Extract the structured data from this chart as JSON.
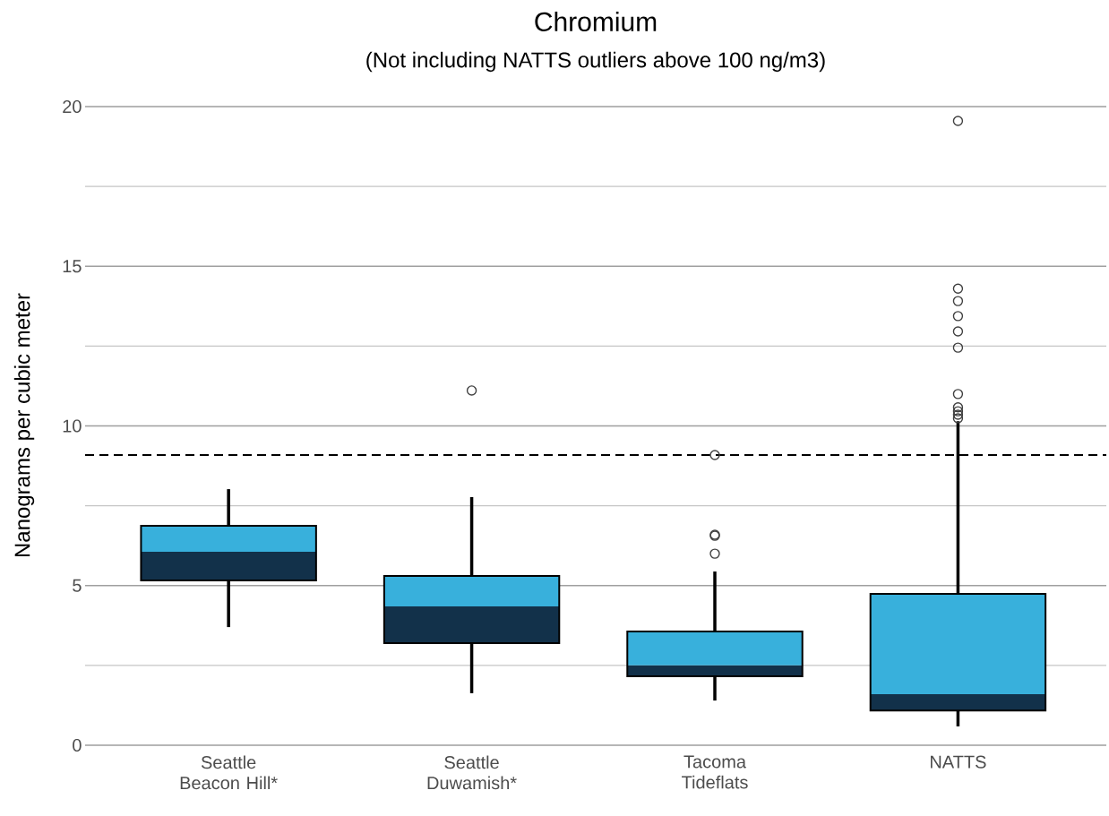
{
  "chart_data": {
    "type": "box",
    "title": "Chromium",
    "subtitle": "(Not including NATTS outliers above 100 ng/m3)",
    "ylabel": "Nanograms per cubic meter",
    "categories": [
      "Seattle Beacon Hill*",
      "Seattle Duwamish*",
      "Tacoma Tideflats",
      "NATTS"
    ],
    "marker": "circle",
    "series": [
      {
        "color": "#38b0dc",
        "colors": [
          "#12314a",
          "#12314a",
          "#12314a",
          "#12314a"
        ],
        "boxes": [
          {
            "low": 3.7,
            "q1": 5.16,
            "median": 6.06,
            "q3": 6.87,
            "high": 8.02
          },
          {
            "low": 1.63,
            "q1": 3.2,
            "median": 4.35,
            "q3": 5.3,
            "high": 7.77,
            "outliers": [
              11.11
            ]
          },
          {
            "low": 1.4,
            "q1": 2.16,
            "median": 2.5,
            "q3": 3.56,
            "high": 5.44,
            "outliers": [
              9.09,
              6.59,
              6.56,
              6.0
            ]
          },
          {
            "low": 0.59,
            "q1": 1.09,
            "median": 1.6,
            "q3": 4.74,
            "high": 10.15,
            "outliers": [
              19.55,
              14.3,
              13.91,
              13.44,
              12.96,
              12.45,
              11.0,
              10.58,
              10.46,
              10.35,
              10.24
            ]
          }
        ]
      }
    ],
    "ylim": [
      0,
      20
    ],
    "yticks": [
      0,
      {
        "value": 2.5,
        "label": null
      },
      5,
      {
        "value": 7.5,
        "label": null
      },
      10,
      {
        "value": 12.5,
        "label": null
      },
      15,
      {
        "value": 17.5,
        "label": null
      },
      20
    ],
    "grid": "y",
    "ref_lines": [
      {
        "axis": "y",
        "value": 9.09,
        "color": "#000000",
        "line_style": "dashed"
      }
    ]
  }
}
